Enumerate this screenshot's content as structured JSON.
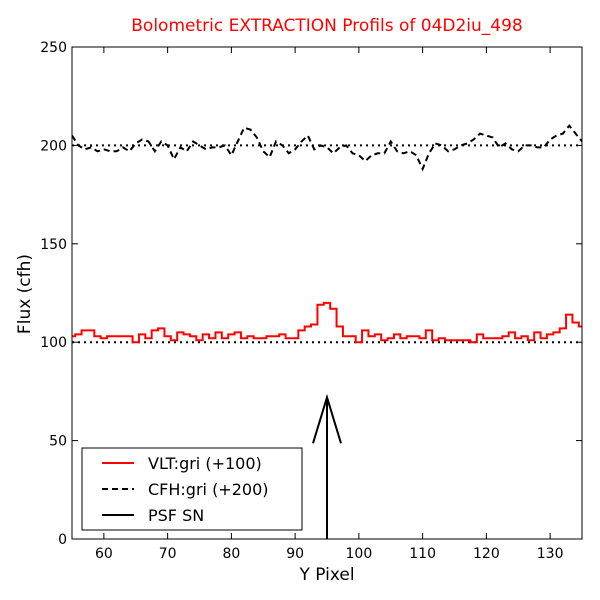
{
  "chart_data": {
    "type": "line",
    "title": "Bolometric EXTRACTION Profils of 04D2iu_498",
    "xlabel": "Y Pixel",
    "ylabel": "Flux (cfh)",
    "xlim": [
      55,
      135
    ],
    "ylim": [
      0,
      250
    ],
    "xticks": [
      "60",
      "70",
      "80",
      "90",
      "100",
      "110",
      "120",
      "130"
    ],
    "yticks": [
      "0",
      "50",
      "100",
      "150",
      "200",
      "250"
    ],
    "legend_position": "lower-left",
    "reference_lines": [
      100,
      200
    ],
    "psf_arrow": {
      "x": 95,
      "y_start": 0,
      "y_end": 72
    },
    "series": [
      {
        "name": "VLT:gri (+100)",
        "style": "step",
        "color": "#ff0000",
        "x": [
          55,
          56,
          57,
          58,
          59,
          60,
          61,
          62,
          63,
          64,
          65,
          66,
          67,
          68,
          69,
          70,
          71,
          72,
          73,
          74,
          75,
          76,
          77,
          78,
          79,
          80,
          81,
          82,
          83,
          84,
          85,
          86,
          87,
          88,
          89,
          90,
          91,
          92,
          93,
          94,
          95,
          96,
          97,
          98,
          99,
          100,
          101,
          102,
          103,
          104,
          105,
          106,
          107,
          108,
          109,
          110,
          111,
          112,
          113,
          114,
          115,
          116,
          117,
          118,
          119,
          120,
          121,
          122,
          123,
          124,
          125,
          126,
          127,
          128,
          129,
          130,
          131,
          132,
          133,
          134,
          135
        ],
        "values": [
          103,
          104,
          106,
          106,
          103,
          102,
          103,
          103,
          103,
          103,
          100,
          104,
          102,
          106,
          107,
          103,
          101,
          105,
          104,
          103,
          101,
          104,
          102,
          105,
          102,
          104,
          105,
          102,
          103,
          102,
          102,
          103,
          103,
          104,
          102,
          102,
          106,
          108,
          109,
          119,
          120,
          117,
          108,
          103,
          103,
          100,
          106,
          103,
          104,
          101,
          102,
          104,
          102,
          103,
          103,
          102,
          106,
          101,
          102,
          101,
          101,
          101,
          101,
          100,
          104,
          102,
          102,
          102,
          103,
          105,
          102,
          103,
          101,
          105,
          102,
          104,
          105,
          107,
          114,
          110,
          108
        ]
      },
      {
        "name": "CFH:gri (+200)",
        "style": "dashed",
        "color": "#000000",
        "x": [
          55,
          56,
          57,
          58,
          59,
          60,
          61,
          62,
          63,
          64,
          65,
          66,
          67,
          68,
          69,
          70,
          71,
          72,
          73,
          74,
          75,
          76,
          77,
          78,
          79,
          80,
          81,
          82,
          83,
          84,
          85,
          86,
          87,
          88,
          89,
          90,
          91,
          92,
          93,
          94,
          95,
          96,
          97,
          98,
          99,
          100,
          101,
          102,
          103,
          104,
          105,
          106,
          107,
          108,
          109,
          110,
          111,
          112,
          113,
          114,
          115,
          116,
          117,
          118,
          119,
          120,
          121,
          122,
          123,
          124,
          125,
          126,
          127,
          128,
          129,
          130,
          131,
          132,
          133,
          134,
          135
        ],
        "values": [
          205,
          200,
          198,
          199,
          197,
          198,
          197,
          197,
          199,
          197,
          201,
          203,
          202,
          197,
          202,
          200,
          193,
          199,
          197,
          202,
          200,
          198,
          199,
          199,
          200,
          195,
          202,
          209,
          208,
          204,
          197,
          194,
          202,
          200,
          196,
          198,
          202,
          205,
          198,
          200,
          199,
          196,
          199,
          200,
          196,
          195,
          192,
          195,
          196,
          196,
          202,
          197,
          196,
          197,
          195,
          188,
          196,
          201,
          200,
          197,
          198,
          200,
          201,
          203,
          206,
          205,
          204,
          199,
          201,
          198,
          197,
          200,
          200,
          199,
          199,
          203,
          205,
          206,
          210,
          206,
          202
        ]
      },
      {
        "name": "PSF SN",
        "style": "solid",
        "color": "#000000"
      }
    ]
  }
}
